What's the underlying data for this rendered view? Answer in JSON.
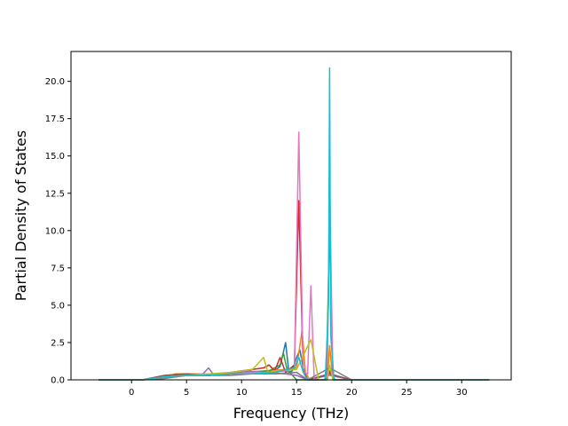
{
  "chart_data": {
    "type": "line",
    "title": "",
    "xlabel": "Frequency (THz)",
    "ylabel": "Partial Density of States",
    "xlim": [
      -5.5,
      34.5
    ],
    "ylim": [
      0,
      22
    ],
    "xticks": [
      0,
      5,
      10,
      15,
      20,
      25,
      30
    ],
    "yticks": [
      0.0,
      2.5,
      5.0,
      7.5,
      10.0,
      12.5,
      15.0,
      17.5,
      20.0
    ],
    "xtick_labels": [
      "0",
      "5",
      "10",
      "15",
      "20",
      "25",
      "30"
    ],
    "ytick_labels": [
      "0.0",
      "2.5",
      "5.0",
      "7.5",
      "10.0",
      "12.5",
      "15.0",
      "17.5",
      "20.0"
    ],
    "grid": false,
    "legend": "none",
    "series": [
      {
        "color": "#1f77b4",
        "x": [
          -3,
          1,
          3,
          4,
          5,
          7,
          9,
          11,
          13,
          13.5,
          14.0,
          14.3,
          14.6,
          15,
          15.3,
          15.6,
          16,
          17.5,
          18.0,
          18.5,
          20,
          32.5
        ],
        "y": [
          0,
          0,
          0.2,
          0.3,
          0.3,
          0.3,
          0.4,
          0.5,
          0.6,
          0.9,
          2.5,
          0.5,
          0.6,
          1.5,
          2.0,
          0.8,
          0,
          0,
          0.5,
          0,
          0,
          0
        ]
      },
      {
        "color": "#ff7f0e",
        "x": [
          -3,
          1,
          3,
          4,
          6,
          8,
          10,
          12,
          14,
          15.0,
          15.5,
          15.8,
          16.2,
          17.8,
          18.0,
          18.3,
          20,
          32.5
        ],
        "y": [
          0,
          0,
          0.2,
          0.4,
          0.4,
          0.3,
          0.5,
          0.6,
          0.7,
          0.8,
          3.3,
          0.5,
          0,
          0,
          2.3,
          0,
          0,
          0
        ]
      },
      {
        "color": "#2ca02c",
        "x": [
          -3,
          1,
          3,
          5,
          7,
          9,
          11,
          12.5,
          13.5,
          13.8,
          14.1,
          14.5,
          15,
          17.7,
          18.0,
          18.3,
          20,
          32.5
        ],
        "y": [
          0,
          0,
          0.1,
          0.3,
          0.3,
          0.4,
          0.5,
          0.6,
          1.0,
          1.8,
          0.8,
          0.4,
          0,
          0,
          10.2,
          0,
          0,
          0
        ]
      },
      {
        "color": "#d62728",
        "x": [
          -3,
          1,
          3,
          5,
          7,
          9,
          10,
          11,
          12,
          12.5,
          13,
          13.5,
          14,
          14.8,
          15.2,
          15.6,
          16,
          17.5,
          18.0,
          18.5,
          20,
          32.5
        ],
        "y": [
          0,
          0,
          0.3,
          0.4,
          0.3,
          0.5,
          0.6,
          0.7,
          0.8,
          1.0,
          0.6,
          1.5,
          0.5,
          1.0,
          12.0,
          0.6,
          0,
          0,
          0.6,
          0,
          0,
          0
        ]
      },
      {
        "color": "#9467bd",
        "x": [
          -3,
          1,
          3,
          5,
          6.5,
          7,
          7.5,
          9,
          10.5,
          12,
          14,
          15,
          16,
          18.0,
          20,
          32.5
        ],
        "y": [
          0,
          0,
          0.2,
          0.3,
          0.4,
          0.8,
          0.3,
          0.5,
          0.6,
          0.5,
          0.4,
          0.3,
          0,
          0.3,
          0,
          0
        ]
      },
      {
        "color": "#8c564b",
        "x": [
          -3,
          1,
          3,
          5,
          7,
          9,
          11,
          13,
          15,
          16,
          18.0,
          20,
          32.5
        ],
        "y": [
          0,
          0,
          0.3,
          0.4,
          0.3,
          0.4,
          0.5,
          0.4,
          0.5,
          0,
          0.4,
          0,
          0
        ]
      },
      {
        "color": "#e377c2",
        "x": [
          -3,
          1,
          3,
          5,
          7,
          9,
          11,
          13,
          14.8,
          15.2,
          15.6,
          16.0,
          16.3,
          16.6,
          17.5,
          17.8,
          18.0,
          18.3,
          20,
          32.5
        ],
        "y": [
          0,
          0,
          0.2,
          0.3,
          0.4,
          0.4,
          0.5,
          0.5,
          0.7,
          16.6,
          0.5,
          0.4,
          6.3,
          0,
          0,
          0.3,
          13.3,
          0,
          0,
          0
        ]
      },
      {
        "color": "#7f7f7f",
        "x": [
          -3,
          1,
          3,
          5,
          7,
          9,
          11,
          13,
          15,
          16,
          18.0,
          20,
          32.5
        ],
        "y": [
          0,
          0,
          0.1,
          0.3,
          0.3,
          0.3,
          0.4,
          0.4,
          0.5,
          0,
          0.8,
          0,
          0
        ]
      },
      {
        "color": "#bcbd22",
        "x": [
          -3,
          1,
          3,
          5,
          7,
          9,
          11,
          12.0,
          12.4,
          13,
          15,
          16.3,
          17,
          17.8,
          18.0,
          18.3,
          20,
          32.5
        ],
        "y": [
          0,
          0,
          0.2,
          0.3,
          0.4,
          0.5,
          0.7,
          1.5,
          0.5,
          0.6,
          0.7,
          2.7,
          0,
          0,
          1.0,
          0,
          0,
          0
        ]
      },
      {
        "color": "#17becf",
        "x": [
          -3,
          1,
          3,
          5,
          7,
          9,
          11,
          13,
          14.8,
          15.2,
          15.6,
          16,
          17.6,
          17.9,
          18.0,
          18.1,
          18.4,
          20,
          32.5
        ],
        "y": [
          0,
          0,
          0.2,
          0.3,
          0.3,
          0.4,
          0.4,
          0.5,
          0.8,
          1.5,
          0.5,
          0,
          0,
          5.0,
          20.9,
          3.0,
          0,
          0,
          0
        ]
      }
    ]
  }
}
